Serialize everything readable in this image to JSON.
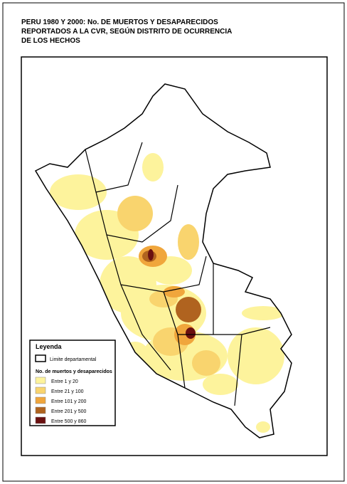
{
  "header": {
    "title_lines": [
      "PERU 1980 Y 2000: No. DE MUERTOS Y DESAPARECIDOS",
      "REPORTADOS A LA CVR, SEGÚN DISTRITO DE OCURRENCIA",
      "DE LOS HECHOS"
    ]
  },
  "legend": {
    "title": "Leyenda",
    "boundary": "Limite departamental",
    "subtitle": "No. de muertos y desaparecidos",
    "items": [
      {
        "label": "Entre 1 y 20",
        "color": "#fdf39c"
      },
      {
        "label": "Entre 21 y 100",
        "color": "#f9d46e"
      },
      {
        "label": "Entre 101 y 200",
        "color": "#f0a63c"
      },
      {
        "label": "Entre 201 y 500",
        "color": "#b0631f"
      },
      {
        "label": "Entre 500 y 860",
        "color": "#6a1010"
      }
    ]
  }
}
